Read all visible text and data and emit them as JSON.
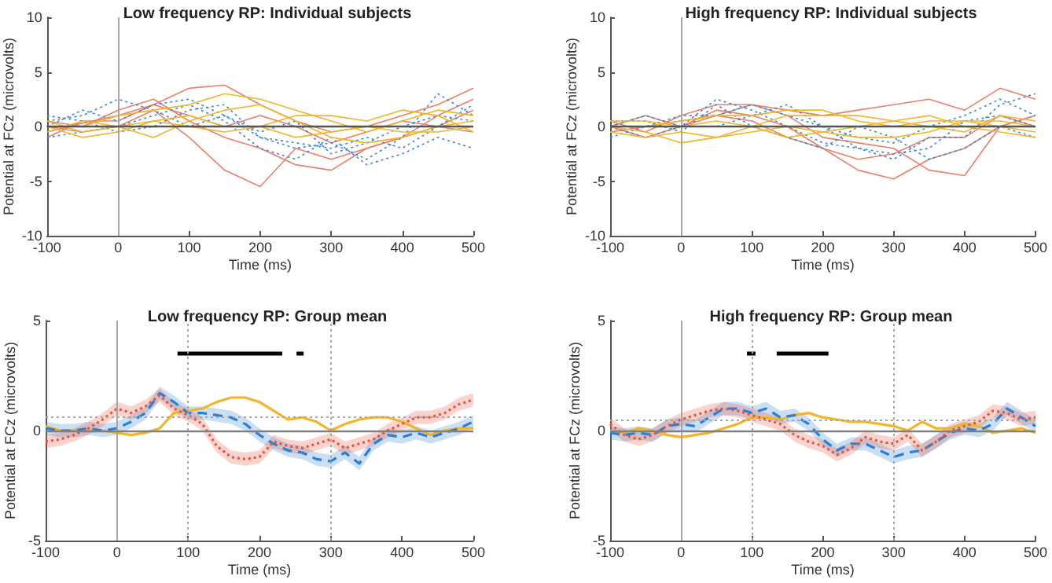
{
  "chart_data": [
    {
      "type": "line",
      "title": "Low frequency RP: Individual subjects",
      "xlabel": "Time (ms)",
      "ylabel": "Potential at FCz (microvolts)",
      "x": [
        -100,
        -50,
        0,
        50,
        100,
        150,
        200,
        250,
        300,
        350,
        400,
        450,
        500
      ],
      "xlim": [
        -100,
        500
      ],
      "xticks": [
        -100,
        0,
        100,
        200,
        300,
        400,
        500
      ],
      "ylim": [
        -10,
        10
      ],
      "yticks": [
        -10,
        -5,
        0,
        5,
        10
      ],
      "grid": false,
      "marker": "none",
      "ref_lines": [
        {
          "axis": "x",
          "value": 0,
          "color": "#a6a6a6",
          "line_style": "solid"
        },
        {
          "axis": "y",
          "value": 0,
          "color": "#555555",
          "line_style": "solid"
        }
      ],
      "series": [
        {
          "color": "#e8806a",
          "line_style": "solid",
          "values": [
            -0.5,
            0.3,
            1,
            2,
            3.5,
            3.8,
            2,
            0.5,
            -0.5,
            0,
            1,
            2,
            3.5
          ]
        },
        {
          "color": "#e8806a",
          "line_style": "solid",
          "values": [
            0,
            -0.5,
            0,
            1.5,
            -1,
            -4,
            -5.5,
            -2,
            -3,
            -2,
            -1,
            0,
            1.5
          ]
        },
        {
          "color": "#e8806a",
          "line_style": "solid",
          "values": [
            0.5,
            0,
            1.5,
            2.5,
            0.5,
            -1,
            -2,
            -3.5,
            -4,
            -2,
            -1,
            1,
            2.5
          ]
        },
        {
          "color": "#e8806a",
          "line_style": "solid",
          "values": [
            -1,
            0.5,
            0.5,
            2,
            1,
            0,
            1,
            0,
            -1.5,
            -0.5,
            0.5,
            0,
            -0.5
          ]
        },
        {
          "color": "#3c86d6",
          "line_style": "dotted",
          "values": [
            0.5,
            1,
            2.5,
            1.5,
            0,
            1,
            -1,
            -2,
            -1.5,
            -3,
            -1,
            3,
            1
          ]
        },
        {
          "color": "#3c86d6",
          "line_style": "dotted",
          "values": [
            -1,
            -0.5,
            0,
            1,
            2,
            0.5,
            -2,
            -3,
            -1,
            -3.5,
            -2.5,
            -1,
            -2
          ]
        },
        {
          "color": "#3c86d6",
          "line_style": "dotted",
          "values": [
            0,
            1.5,
            0.5,
            2,
            2.5,
            1,
            -0.5,
            0.5,
            -2.5,
            -1.5,
            0,
            1,
            0.5
          ]
        },
        {
          "color": "#3c86d6",
          "line_style": "dotted",
          "values": [
            1,
            0.5,
            -0.5,
            0,
            1.5,
            2,
            -1,
            -1.5,
            -2,
            -1,
            -2,
            0,
            2
          ]
        },
        {
          "color": "#f2b52a",
          "line_style": "solid",
          "values": [
            0,
            0,
            1,
            1.5,
            2,
            3,
            2.5,
            1.5,
            0.5,
            -0.5,
            0.5,
            1.5,
            1
          ]
        },
        {
          "color": "#f2b52a",
          "line_style": "solid",
          "values": [
            0.5,
            -0.5,
            0,
            -1,
            0.5,
            1.5,
            2,
            0.5,
            -1,
            -1.5,
            -1,
            0,
            0.5
          ]
        },
        {
          "color": "#f2b52a",
          "line_style": "solid",
          "values": [
            -0.5,
            0.5,
            0,
            0.5,
            1,
            0,
            0,
            1,
            1,
            0.5,
            1.5,
            1,
            -0.5
          ]
        },
        {
          "color": "#f2b52a",
          "line_style": "solid",
          "values": [
            0,
            -1,
            -0.5,
            0.5,
            0,
            -0.5,
            0,
            -1,
            -0.5,
            0,
            -0.5,
            -0.5,
            0
          ]
        }
      ]
    },
    {
      "type": "line",
      "title": "High frequency RP: Individual subjects",
      "xlabel": "Time (ms)",
      "ylabel": "Potential at FCz (microvolts)",
      "x": [
        -100,
        -50,
        0,
        50,
        100,
        150,
        200,
        250,
        300,
        350,
        400,
        450,
        500
      ],
      "xlim": [
        -100,
        500
      ],
      "xticks": [
        -100,
        0,
        100,
        200,
        300,
        400,
        500
      ],
      "ylim": [
        -10,
        10
      ],
      "yticks": [
        -10,
        -5,
        0,
        5,
        10
      ],
      "grid": false,
      "marker": "none",
      "ref_lines": [
        {
          "axis": "x",
          "value": 0,
          "color": "#a6a6a6",
          "line_style": "solid"
        },
        {
          "axis": "y",
          "value": 0,
          "color": "#555555",
          "line_style": "solid"
        }
      ],
      "series": [
        {
          "color": "#e8806a",
          "line_style": "solid",
          "values": [
            0,
            1,
            0,
            1.5,
            1,
            0,
            -2,
            -4,
            -4.8,
            -3,
            -2,
            0,
            1
          ]
        },
        {
          "color": "#e8806a",
          "line_style": "solid",
          "values": [
            0.5,
            -0.5,
            1,
            2,
            2,
            1,
            -1,
            -1.5,
            -2,
            -4,
            -4.5,
            0,
            1
          ]
        },
        {
          "color": "#e8806a",
          "line_style": "solid",
          "values": [
            -0.5,
            0,
            0.5,
            1,
            2,
            1.5,
            1,
            1.5,
            2,
            2.5,
            1.5,
            3.5,
            2.5
          ]
        },
        {
          "color": "#e8806a",
          "line_style": "solid",
          "values": [
            0,
            -1,
            0,
            1,
            0.5,
            -1,
            -2,
            -3,
            -2.5,
            -1,
            -1,
            1,
            0
          ]
        },
        {
          "color": "#3c86d6",
          "line_style": "dotted",
          "values": [
            0,
            -1,
            0,
            2.5,
            1.5,
            0,
            -1.5,
            -2,
            -3,
            -1,
            -1,
            2,
            3
          ]
        },
        {
          "color": "#3c86d6",
          "line_style": "dotted",
          "values": [
            -1,
            0,
            1,
            1,
            2,
            1,
            0,
            -2,
            -2.5,
            -2,
            0.5,
            1,
            0
          ]
        },
        {
          "color": "#3c86d6",
          "line_style": "dotted",
          "values": [
            0.5,
            0.5,
            -0.5,
            2,
            0,
            -1,
            -2,
            0,
            -1,
            -3,
            -2,
            0,
            -1
          ]
        },
        {
          "color": "#3c86d6",
          "line_style": "dotted",
          "values": [
            0,
            1,
            0,
            0,
            1,
            2,
            0,
            -1,
            -1.5,
            0,
            1,
            2.5,
            1
          ]
        },
        {
          "color": "#f2b52a",
          "line_style": "solid",
          "values": [
            0,
            0,
            0.5,
            1,
            1,
            1.5,
            1.5,
            0.5,
            0,
            0.5,
            0.5,
            0.5,
            0
          ]
        },
        {
          "color": "#f2b52a",
          "line_style": "solid",
          "values": [
            -0.5,
            -1,
            -0.5,
            -1,
            -0.5,
            0,
            -0.5,
            -1,
            -1,
            -0.5,
            0.5,
            0,
            -0.5
          ]
        },
        {
          "color": "#f2b52a",
          "line_style": "solid",
          "values": [
            0.5,
            0.5,
            0,
            0.5,
            0,
            1,
            1,
            1,
            0.5,
            0,
            -0.5,
            1,
            0.5
          ]
        },
        {
          "color": "#f2b52a",
          "line_style": "solid",
          "values": [
            0,
            -0.5,
            -1.5,
            -1,
            0,
            -1,
            -0.5,
            0,
            0.5,
            1,
            0,
            -0.5,
            -1
          ]
        }
      ]
    },
    {
      "type": "line",
      "title": "Low frequency RP: Group mean",
      "xlabel": "Time (ms)",
      "ylabel": "Potential at FCz (microvolts)",
      "x": [
        -100,
        -80,
        -60,
        -40,
        -20,
        0,
        20,
        40,
        60,
        80,
        100,
        120,
        140,
        160,
        180,
        200,
        220,
        240,
        260,
        280,
        300,
        320,
        340,
        360,
        380,
        400,
        420,
        440,
        460,
        480,
        500
      ],
      "xlim": [
        -100,
        500
      ],
      "xticks": [
        -100,
        0,
        100,
        200,
        300,
        400,
        500
      ],
      "ylim": [
        -5,
        5
      ],
      "yticks": [
        -5,
        0,
        5
      ],
      "grid": false,
      "marker": "none",
      "ref_lines": [
        {
          "axis": "x",
          "value": 0,
          "color": "#a6a6a6",
          "line_style": "solid"
        },
        {
          "axis": "y",
          "value": 0,
          "color": "#808080",
          "line_style": "solid"
        },
        {
          "axis": "x",
          "value": 100,
          "color": "#a6a6a6",
          "line_style": "dotted"
        },
        {
          "axis": "x",
          "value": 300,
          "color": "#a6a6a6",
          "line_style": "dotted"
        },
        {
          "axis": "y",
          "value": 0.6,
          "color": "#a6a6a6",
          "line_style": "dotted"
        }
      ],
      "series": [
        {
          "color": "#f2b52a",
          "line_style": "solid",
          "values": [
            0.2,
            0,
            0,
            0,
            0,
            -0.1,
            -0.2,
            -0.1,
            0.1,
            0.8,
            0.9,
            1,
            1.3,
            1.5,
            1.5,
            1.3,
            0.9,
            0.5,
            0.6,
            0.4,
            0,
            0.3,
            0.5,
            0.6,
            0.6,
            0.4,
            0.1,
            -0.2,
            0,
            0.1,
            0.1
          ]
        },
        {
          "color": "#2c7fd4",
          "line_style": "dashed",
          "values": [
            0.1,
            0,
            0,
            0.1,
            0,
            0.1,
            0.4,
            0.8,
            1.7,
            1.3,
            0.8,
            0.8,
            0.7,
            0.6,
            0.3,
            -0.2,
            -0.6,
            -0.9,
            -1,
            -1.3,
            -1.4,
            -1,
            -1.5,
            -0.6,
            -0.2,
            -0.3,
            -0.1,
            -0.3,
            -0.1,
            0.1,
            0.4
          ],
          "lower": [
            -0.2,
            -0.3,
            -0.3,
            -0.2,
            -0.3,
            -0.2,
            0.1,
            0.5,
            1.4,
            1,
            0.5,
            0.5,
            0.4,
            0.3,
            0,
            -0.5,
            -0.9,
            -1.2,
            -1.3,
            -1.6,
            -1.7,
            -1.3,
            -1.8,
            -0.9,
            -0.5,
            -0.6,
            -0.4,
            -0.6,
            -0.4,
            -0.2,
            0.1
          ],
          "upper": [
            0.4,
            0.3,
            0.3,
            0.4,
            0.3,
            0.4,
            0.7,
            1.1,
            2,
            1.6,
            1.1,
            1.1,
            1,
            0.9,
            0.6,
            0.1,
            -0.3,
            -0.6,
            -0.7,
            -1,
            -1.1,
            -0.7,
            -1.2,
            -0.3,
            0.1,
            0,
            0.2,
            0,
            0.2,
            0.4,
            0.7
          ]
        },
        {
          "color": "#e8553a",
          "line_style": "dotted",
          "values": [
            -0.5,
            -0.4,
            -0.2,
            0.1,
            0.5,
            1,
            0.8,
            1.1,
            1.6,
            1,
            0.7,
            0.3,
            -0.7,
            -1.2,
            -1.3,
            -1.2,
            -0.5,
            -0.7,
            -0.8,
            -0.6,
            -0.4,
            -0.8,
            -0.6,
            -0.4,
            0,
            0.3,
            0.6,
            0.6,
            0.8,
            1.2,
            1.4
          ],
          "lower": [
            -0.8,
            -0.7,
            -0.5,
            -0.2,
            0.2,
            0.7,
            0.5,
            0.8,
            1.3,
            0.7,
            0.4,
            0,
            -1,
            -1.5,
            -1.6,
            -1.5,
            -0.8,
            -1,
            -1.1,
            -0.9,
            -0.7,
            -1.1,
            -0.9,
            -0.7,
            -0.3,
            0,
            0.3,
            0.3,
            0.5,
            0.9,
            1.1
          ],
          "upper": [
            -0.2,
            -0.1,
            0.1,
            0.4,
            0.8,
            1.3,
            1.1,
            1.4,
            1.9,
            1.3,
            1,
            0.6,
            -0.4,
            -0.9,
            -1,
            -0.9,
            -0.2,
            -0.4,
            -0.5,
            -0.3,
            -0.1,
            -0.5,
            -0.3,
            -0.1,
            0.3,
            0.6,
            0.9,
            0.9,
            1.1,
            1.5,
            1.7
          ]
        },
        {
          "color": "#000000",
          "line_style": "solid",
          "x": [
            85,
            232
          ],
          "values": [
            3.5,
            3.5
          ]
        },
        {
          "color": "#000000",
          "line_style": "solid",
          "x": [
            252,
            262
          ],
          "values": [
            3.5,
            3.5
          ]
        }
      ]
    },
    {
      "type": "line",
      "title": "High frequency RP: Group mean",
      "xlabel": "Time (ms)",
      "ylabel": "Potential at FCz (microvolts)",
      "x": [
        -100,
        -80,
        -60,
        -40,
        -20,
        0,
        20,
        40,
        60,
        80,
        100,
        120,
        140,
        160,
        180,
        200,
        220,
        240,
        260,
        280,
        300,
        320,
        340,
        360,
        380,
        400,
        420,
        440,
        460,
        480,
        500
      ],
      "xlim": [
        -100,
        500
      ],
      "xticks": [
        -100,
        0,
        100,
        200,
        300,
        400,
        500
      ],
      "ylim": [
        -5,
        5
      ],
      "yticks": [
        -5,
        0,
        5
      ],
      "grid": false,
      "marker": "none",
      "ref_lines": [
        {
          "axis": "x",
          "value": 0,
          "color": "#a6a6a6",
          "line_style": "solid"
        },
        {
          "axis": "y",
          "value": 0,
          "color": "#808080",
          "line_style": "solid"
        },
        {
          "axis": "x",
          "value": 100,
          "color": "#a6a6a6",
          "line_style": "dotted"
        },
        {
          "axis": "x",
          "value": 300,
          "color": "#a6a6a6",
          "line_style": "dotted"
        },
        {
          "axis": "y",
          "value": 0.5,
          "color": "#a6a6a6",
          "line_style": "dotted"
        }
      ],
      "series": [
        {
          "color": "#f2b52a",
          "line_style": "solid",
          "values": [
            0,
            -0.1,
            0.1,
            0,
            -0.2,
            -0.3,
            -0.2,
            -0.1,
            0.1,
            0.3,
            0.6,
            0.6,
            0.5,
            0.7,
            0.8,
            0.6,
            0.5,
            0.4,
            0.4,
            0.3,
            0.2,
            0,
            0.4,
            0.1,
            0.1,
            0.3,
            0.2,
            -0.1,
            0,
            0.1,
            -0.1
          ]
        },
        {
          "color": "#2c7fd4",
          "line_style": "dashed",
          "values": [
            -0.1,
            -0.2,
            -0.1,
            -0.2,
            0.2,
            0.3,
            0.2,
            0.6,
            1,
            1,
            0.8,
            1,
            0.6,
            0.7,
            0.3,
            -0.4,
            -0.9,
            -0.6,
            -0.6,
            -0.9,
            -1.2,
            -1,
            -0.9,
            -0.5,
            -0.1,
            0.1,
            0,
            0.3,
            1,
            0.6,
            0.2
          ],
          "lower": [
            -0.4,
            -0.5,
            -0.4,
            -0.5,
            -0.1,
            0,
            -0.1,
            0.3,
            0.7,
            0.7,
            0.5,
            0.7,
            0.3,
            0.4,
            0,
            -0.7,
            -1.2,
            -0.9,
            -0.9,
            -1.2,
            -1.5,
            -1.3,
            -1.2,
            -0.8,
            -0.4,
            -0.2,
            -0.3,
            0,
            0.7,
            0.3,
            -0.1
          ],
          "upper": [
            0.2,
            0.1,
            0.2,
            0.1,
            0.5,
            0.6,
            0.5,
            0.9,
            1.3,
            1.3,
            1.1,
            1.3,
            0.9,
            1,
            0.6,
            -0.1,
            -0.6,
            -0.3,
            -0.3,
            -0.6,
            -0.9,
            -0.7,
            -0.6,
            -0.2,
            0.2,
            0.4,
            0.3,
            0.6,
            1.3,
            0.9,
            0.5
          ]
        },
        {
          "color": "#e8553a",
          "line_style": "dotted",
          "values": [
            0.3,
            -0.2,
            -0.4,
            -0.2,
            0.2,
            0.5,
            0.7,
            0.9,
            1,
            0.9,
            0.7,
            0.5,
            0.3,
            -0.2,
            -0.5,
            -0.7,
            -1.1,
            -0.8,
            -0.3,
            -0.5,
            -0.6,
            -0.2,
            -0.9,
            -0.5,
            0,
            0.2,
            0.4,
            0.9,
            0.8,
            0.5,
            0.6
          ],
          "lower": [
            0,
            -0.5,
            -0.7,
            -0.5,
            -0.1,
            0.2,
            0.4,
            0.6,
            0.7,
            0.6,
            0.4,
            0.2,
            0,
            -0.5,
            -0.8,
            -1,
            -1.4,
            -1.1,
            -0.6,
            -0.8,
            -0.9,
            -0.5,
            -1.2,
            -0.8,
            -0.3,
            -0.1,
            0.1,
            0.6,
            0.5,
            0.2,
            0.3
          ],
          "upper": [
            0.6,
            0.1,
            -0.1,
            0.1,
            0.5,
            0.8,
            1,
            1.2,
            1.3,
            1.2,
            1,
            0.8,
            0.6,
            0.1,
            -0.2,
            -0.4,
            -0.8,
            -0.5,
            0,
            -0.2,
            -0.3,
            0.1,
            -0.6,
            -0.2,
            0.3,
            0.5,
            0.7,
            1.2,
            1.1,
            0.8,
            0.9
          ]
        },
        {
          "color": "#000000",
          "line_style": "solid",
          "x": [
            93,
            105
          ],
          "values": [
            3.5,
            3.5
          ]
        },
        {
          "color": "#000000",
          "line_style": "solid",
          "x": [
            135,
            208
          ],
          "values": [
            3.5,
            3.5
          ]
        }
      ]
    }
  ]
}
